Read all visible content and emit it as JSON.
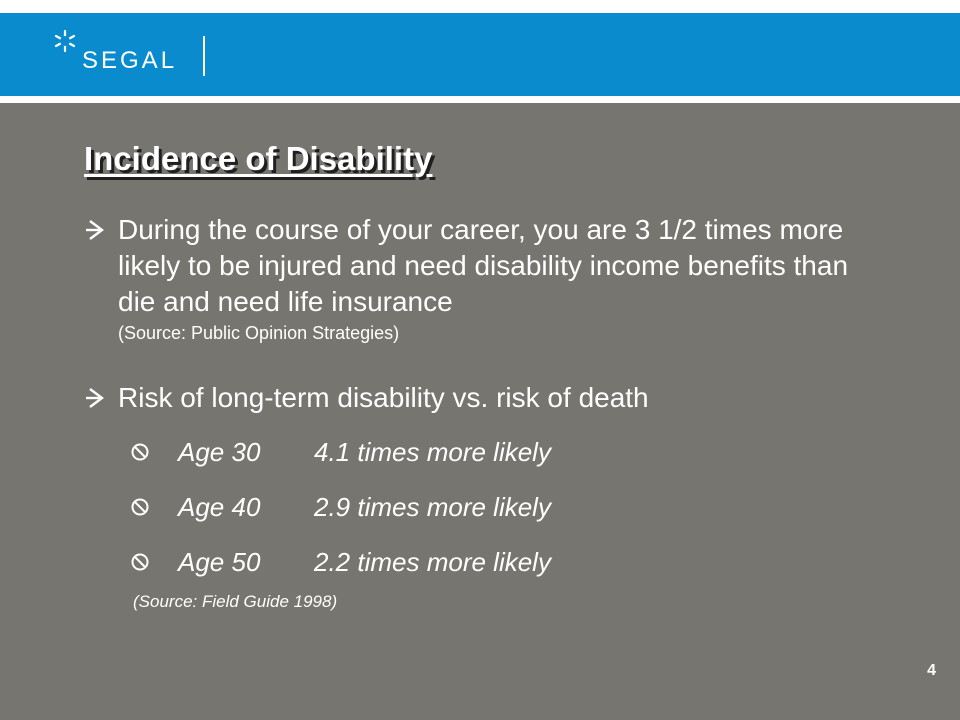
{
  "header": {
    "logo_text": "SEGAL",
    "logo_icon": "star-icon"
  },
  "slide": {
    "title": "Incidence of Disability",
    "bullets": [
      {
        "icon": "arrow-bullet-icon",
        "text": "During the course of your career, you are 3 1/2 times more likely to be injured and need disability income benefits than die and need life insurance",
        "source": "(Source: Public Opinion Strategies)"
      },
      {
        "icon": "arrow-bullet-icon",
        "text": "Risk of long-term disability vs. risk of death"
      }
    ],
    "sub_items": [
      {
        "icon": "no-symbol-icon",
        "age": "Age 30",
        "value": "4.1 times more likely"
      },
      {
        "icon": "no-symbol-icon",
        "age": "Age 40",
        "value": "2.9 times more likely"
      },
      {
        "icon": "no-symbol-icon",
        "age": "Age 50",
        "value": "2.2 times more likely"
      }
    ],
    "source2": "(Source:  Field Guide 1998)",
    "page_number": "4"
  },
  "colors": {
    "header_blue": "#0a8bcd",
    "slide_background": "#77756f",
    "text": "#ffffff"
  }
}
